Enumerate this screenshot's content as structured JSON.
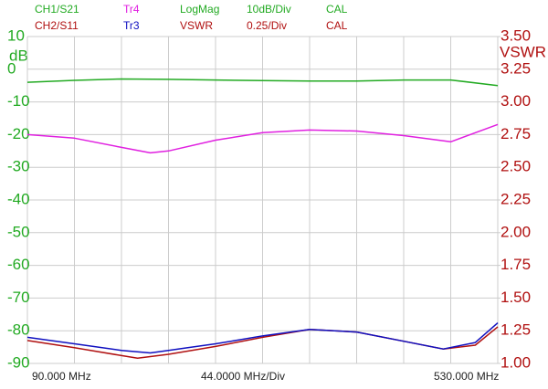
{
  "chart_data": {
    "type": "line",
    "header": {
      "row1": {
        "items": [
          "LogMag",
          "10dB/Div",
          "CAL"
        ],
        "color": "#22aa22"
      },
      "row2": {
        "items": [
          "VSWR",
          "0.25/Div",
          "CAL"
        ],
        "color": "#b01010"
      }
    },
    "ylabel": "dB",
    "y2label": "VSWR",
    "x_start_label": "90.000 MHz",
    "x_div_label": "44.0000 MHz/Div",
    "x_stop_label": "530.000 MHz",
    "xlim": [
      90,
      530
    ],
    "ylim": [
      -90,
      10
    ],
    "yticks": [
      10,
      0,
      -10,
      -20,
      -30,
      -40,
      -50,
      -60,
      -70,
      -80,
      -90
    ],
    "y2lim": [
      1,
      3.5
    ],
    "y2ticks": [
      {
        "value": 3.5,
        "label": "3.50"
      },
      3.25,
      {
        "value": 3,
        "label": "3.00"
      },
      2.75,
      {
        "value": 2.5,
        "label": "2.50"
      },
      2.25,
      {
        "value": 2,
        "label": "2.00"
      },
      1.75,
      {
        "value": 1.5,
        "label": "1.50"
      },
      1.25,
      {
        "value": 1,
        "label": "1.00"
      }
    ],
    "grid": true,
    "series": [
      {
        "name": "CH1/S21",
        "color": "#22aa22",
        "x": [
          90,
          134,
          178,
          222,
          266,
          310,
          354,
          398,
          442,
          486,
          530
        ],
        "values": [
          -4.0,
          -3.4,
          -3.0,
          -3.1,
          -3.3,
          -3.5,
          -3.6,
          -3.6,
          -3.3,
          -3.3,
          -5.0
        ]
      },
      {
        "name": "Tr4",
        "color": "#e020e0",
        "x": [
          90,
          134,
          178,
          205,
          222,
          266,
          310,
          354,
          398,
          442,
          486,
          530
        ],
        "values": [
          -20.0,
          -21.1,
          -23.9,
          -25.6,
          -25.0,
          -21.7,
          -19.4,
          -18.6,
          -18.9,
          -20.3,
          -22.2,
          -16.9
        ]
      },
      {
        "name": "CH2/S11",
        "color": "#b01010",
        "axis": "y2",
        "x": [
          90,
          134,
          178,
          193,
          222,
          266,
          310,
          354,
          398,
          442,
          479,
          509,
          530
        ],
        "values": [
          1.175,
          1.12,
          1.06,
          1.04,
          1.07,
          1.13,
          1.2,
          1.26,
          1.24,
          1.17,
          1.11,
          1.14,
          1.28
        ]
      },
      {
        "name": "Tr3",
        "color": "#1010c0",
        "axis": "y2",
        "x": [
          90,
          134,
          178,
          205,
          222,
          266,
          310,
          354,
          398,
          442,
          479,
          509,
          530
        ],
        "values": [
          1.2,
          1.15,
          1.1,
          1.08,
          1.1,
          1.15,
          1.21,
          1.26,
          1.24,
          1.17,
          1.11,
          1.16,
          1.31
        ]
      }
    ]
  }
}
